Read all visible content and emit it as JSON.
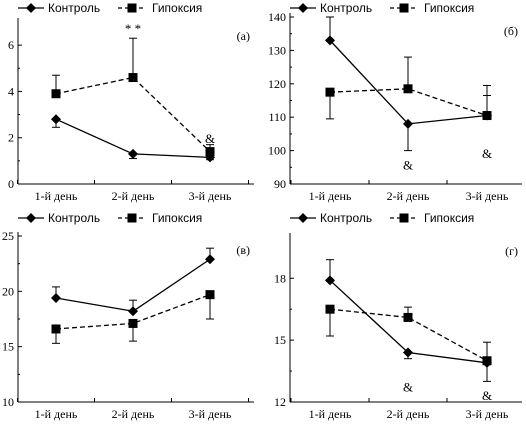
{
  "legend": {
    "series_a": "Контроль",
    "series_b": "Гипоксия"
  },
  "chart_data": [
    {
      "type": "line",
      "panel_label": "(а)",
      "categories": [
        "1-й день",
        "2-й день",
        "3-й день"
      ],
      "ylim": [
        0,
        7
      ],
      "yticks": [
        0,
        2,
        4,
        6
      ],
      "series": [
        {
          "name": "Контроль",
          "values": [
            2.8,
            1.3,
            1.15
          ],
          "errors": [
            0.35,
            0.2,
            0.1
          ],
          "marker": "diamond",
          "dash": false
        },
        {
          "name": "Гипоксия",
          "values": [
            3.9,
            4.6,
            1.4
          ],
          "errors": [
            0.8,
            1.7,
            0.3
          ],
          "marker": "square",
          "dash": true
        }
      ],
      "annotations": [
        {
          "text": "* *",
          "category": 1,
          "y": 6.7
        },
        {
          "text": "&",
          "category": 2,
          "y": 1.95
        }
      ]
    },
    {
      "type": "line",
      "panel_label": "(б)",
      "categories": [
        "1-й день",
        "2-й день",
        "3-й день"
      ],
      "ylim": [
        90,
        140
      ],
      "yticks": [
        90,
        100,
        110,
        120,
        130,
        140
      ],
      "series": [
        {
          "name": "Контроль",
          "values": [
            133,
            108,
            110.5
          ],
          "errors": [
            7,
            8,
            6
          ],
          "marker": "diamond",
          "dash": false
        },
        {
          "name": "Гипоксия",
          "values": [
            117.5,
            118.5,
            110.5
          ],
          "errors": [
            8,
            9.5,
            9
          ],
          "marker": "square",
          "dash": true
        }
      ],
      "annotations": [
        {
          "text": "&",
          "category": 1,
          "y": 95.5
        },
        {
          "text": "&",
          "category": 2,
          "y": 99
        }
      ]
    },
    {
      "type": "line",
      "panel_label": "(в)",
      "categories": [
        "1-й день",
        "2-й день",
        "3-й день"
      ],
      "ylim": [
        10,
        25
      ],
      "yticks": [
        10,
        15,
        20,
        25
      ],
      "series": [
        {
          "name": "Контроль",
          "values": [
            19.4,
            18.2,
            22.9
          ],
          "errors": [
            1.0,
            1.0,
            1.0
          ],
          "marker": "diamond",
          "dash": false
        },
        {
          "name": "Гипоксия",
          "values": [
            16.6,
            17.1,
            19.7
          ],
          "errors": [
            1.3,
            1.6,
            2.2
          ],
          "marker": "square",
          "dash": true
        }
      ],
      "annotations": []
    },
    {
      "type": "line",
      "panel_label": "(г)",
      "categories": [
        "1-й день",
        "2-й день",
        "3-й день"
      ],
      "ylim": [
        12,
        20
      ],
      "yticks": [
        12,
        15,
        18
      ],
      "series": [
        {
          "name": "Контроль",
          "values": [
            17.9,
            14.4,
            13.9
          ],
          "errors": [
            1.0,
            0.3,
            0.9
          ],
          "marker": "diamond",
          "dash": false
        },
        {
          "name": "Гипоксия",
          "values": [
            16.5,
            16.1,
            14.0
          ],
          "errors": [
            1.3,
            0.5,
            0.9
          ],
          "marker": "square",
          "dash": true
        }
      ],
      "annotations": [
        {
          "text": "&",
          "category": 1,
          "y": 12.7
        },
        {
          "text": "&",
          "category": 2,
          "y": 12.3
        }
      ]
    }
  ]
}
